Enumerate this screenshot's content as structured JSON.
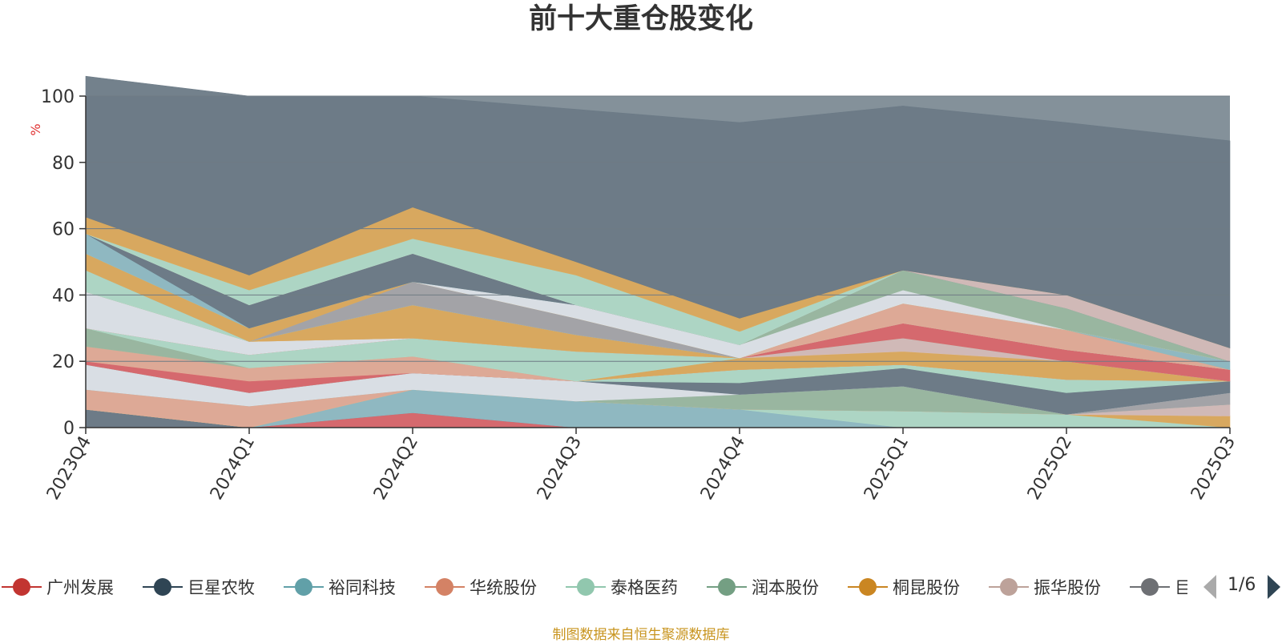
{
  "colors": {
    "plot_background": "#84919a",
    "gridline": "#6f7b84",
    "axis_line": "#333333",
    "axis_text": "#333333",
    "unit_text": "#e03030",
    "source_text": "#c8941e"
  },
  "chart_data": {
    "type": "area",
    "stacked": true,
    "title": "前十大重仓股变化",
    "ylabel": "%",
    "ylim": [
      0,
      100
    ],
    "yticks": [
      0,
      20,
      40,
      60,
      80,
      100
    ],
    "grid": true,
    "legend_position": "bottom",
    "categories": [
      "2023Q4",
      "2024Q1",
      "2024Q2",
      "2024Q3",
      "2024Q4",
      "2025Q1",
      "2025Q2",
      "2025Q3"
    ],
    "series": [
      {
        "name": "广州发展",
        "color": "#d9676b",
        "values": [
          0,
          0,
          4.5,
          0,
          0,
          0,
          0,
          0
        ]
      },
      {
        "name": "",
        "color": "#6b7a86",
        "values": [
          5.5,
          0,
          0,
          0,
          0,
          0,
          0,
          0
        ]
      },
      {
        "name": "裕同科技",
        "color": "#8fbac3",
        "values": [
          0,
          0,
          7,
          8,
          5.5,
          0,
          0,
          0
        ]
      },
      {
        "name": "泰格医药",
        "color": "#afd9c6",
        "values": [
          0,
          0,
          0,
          0,
          0,
          5,
          4,
          0
        ]
      },
      {
        "name": "桐昆股份",
        "color": "#dcaa5c",
        "values": [
          0,
          0,
          0,
          0,
          0,
          0,
          0,
          3.5
        ]
      },
      {
        "name": "",
        "color": "#e2ab96",
        "values": [
          6,
          6.5,
          0,
          0,
          0,
          0,
          0,
          0
        ]
      },
      {
        "name": "振华股份",
        "color": "#d4bcb8",
        "values": [
          0,
          0,
          0,
          0,
          0,
          0,
          0,
          3.5
        ]
      },
      {
        "name": "润本股份",
        "color": "#9ab8a0",
        "values": [
          0,
          0,
          0,
          0,
          4.5,
          7.5,
          0,
          0
        ]
      },
      {
        "name": "",
        "color": "#a4a4a8",
        "values": [
          0,
          0,
          0,
          0,
          0,
          0,
          0,
          3.5
        ]
      },
      {
        "name": "",
        "color": "#dde3e8",
        "values": [
          7.5,
          4,
          5,
          6,
          0,
          0,
          0,
          0
        ]
      },
      {
        "name": "巨星农牧",
        "color": "#6b7a86",
        "values": [
          0,
          0,
          0,
          0,
          3.5,
          5.5,
          6.5,
          3.5
        ]
      },
      {
        "name": "",
        "color": "#afd9c6",
        "values": [
          0,
          0,
          0,
          0,
          4,
          1,
          4,
          0
        ]
      },
      {
        "name": "",
        "color": "#d9676b",
        "values": [
          1,
          3.5,
          0,
          0,
          0,
          0,
          0,
          0
        ]
      },
      {
        "name": "",
        "color": "#e2ab96",
        "values": [
          4.5,
          4,
          5,
          0,
          0,
          0,
          0,
          0
        ]
      },
      {
        "name": "",
        "color": "#dcaa5c",
        "values": [
          0,
          0,
          0,
          0,
          3.5,
          4,
          5.5,
          0
        ]
      },
      {
        "name": "",
        "color": "#d4bcb8",
        "values": [
          0,
          0,
          0,
          0,
          0,
          4,
          0,
          0
        ]
      },
      {
        "name": "",
        "color": "#9ab8a0",
        "values": [
          5.5,
          0,
          0,
          0,
          0,
          0,
          0,
          0
        ]
      },
      {
        "name": "",
        "color": "#afd9c6",
        "values": [
          0,
          4,
          5.5,
          9,
          0,
          0,
          0,
          0
        ]
      },
      {
        "name": "",
        "color": "#d9676b",
        "values": [
          0,
          0,
          0,
          0,
          0,
          4.5,
          3.5,
          3.5
        ]
      },
      {
        "name": "",
        "color": "#dde3e8",
        "values": [
          11,
          4,
          0,
          0,
          0,
          0,
          0,
          0
        ]
      },
      {
        "name": "",
        "color": "#9ab8a0",
        "values": [
          0,
          0,
          0,
          0,
          0,
          0,
          0,
          0
        ]
      },
      {
        "name": "",
        "color": "#e2ab96",
        "values": [
          0,
          0,
          0,
          0,
          0,
          6,
          6,
          0
        ]
      },
      {
        "name": "",
        "color": "#dcaa5c",
        "values": [
          0,
          0,
          10,
          5,
          0,
          0,
          0,
          0
        ]
      },
      {
        "name": "",
        "color": "#8fbac3",
        "values": [
          0,
          0,
          0,
          0,
          0,
          0,
          0,
          2.5
        ]
      },
      {
        "name": "",
        "color": "#afd9c6",
        "values": [
          6.5,
          0,
          0,
          0,
          0,
          0,
          0,
          0
        ]
      },
      {
        "name": "",
        "color": "#a4a4a8",
        "values": [
          0,
          0,
          7,
          5,
          0,
          0,
          0,
          0
        ]
      },
      {
        "name": "",
        "color": "#dcaa5c",
        "values": [
          5,
          4,
          0,
          0,
          0,
          0,
          0,
          0
        ]
      },
      {
        "name": "",
        "color": "#dde3e8",
        "values": [
          0,
          0,
          0,
          4,
          4,
          4,
          0,
          0
        ]
      },
      {
        "name": "",
        "color": "#9ab8a0",
        "values": [
          0,
          0,
          0,
          0,
          0,
          6,
          6.5,
          0
        ]
      },
      {
        "name": "",
        "color": "#8fbac3",
        "values": [
          6,
          0,
          0,
          0,
          0,
          0,
          0,
          0
        ]
      },
      {
        "name": "",
        "color": "#6b7a86",
        "values": [
          0,
          7,
          8.5,
          0,
          0,
          0,
          0,
          0
        ]
      },
      {
        "name": "",
        "color": "#d4bcb8",
        "values": [
          0,
          0,
          0,
          0,
          0,
          0,
          4,
          4
        ]
      },
      {
        "name": "",
        "color": "#afd9c6",
        "values": [
          0,
          4.5,
          4.5,
          9,
          4,
          0,
          0,
          0
        ]
      },
      {
        "name": "",
        "color": "#dcaa5c",
        "values": [
          5,
          4.5,
          9.5,
          4,
          4,
          0,
          0,
          0
        ]
      },
      {
        "name": "",
        "color": "#6b7a86",
        "values": [
          42.5,
          54,
          33.5,
          46,
          59,
          49.5,
          52,
          62.5
        ]
      }
    ]
  },
  "legend": {
    "items": [
      {
        "name": "广州发展",
        "color": "#c23531"
      },
      {
        "name": "巨星农牧",
        "color": "#2f4554"
      },
      {
        "name": "裕同科技",
        "color": "#61a0a8"
      },
      {
        "name": "华统股份",
        "color": "#d48265"
      },
      {
        "name": "泰格医药",
        "color": "#91c7ae"
      },
      {
        "name": "润本股份",
        "color": "#749f83"
      },
      {
        "name": "桐昆股份",
        "color": "#ca8622"
      },
      {
        "name": "振华股份",
        "color": "#bda29a"
      },
      {
        "name": "巨",
        "color": "#6e7074"
      }
    ],
    "page": "1/6"
  },
  "source_note": "制图数据来自恒生聚源数据库"
}
